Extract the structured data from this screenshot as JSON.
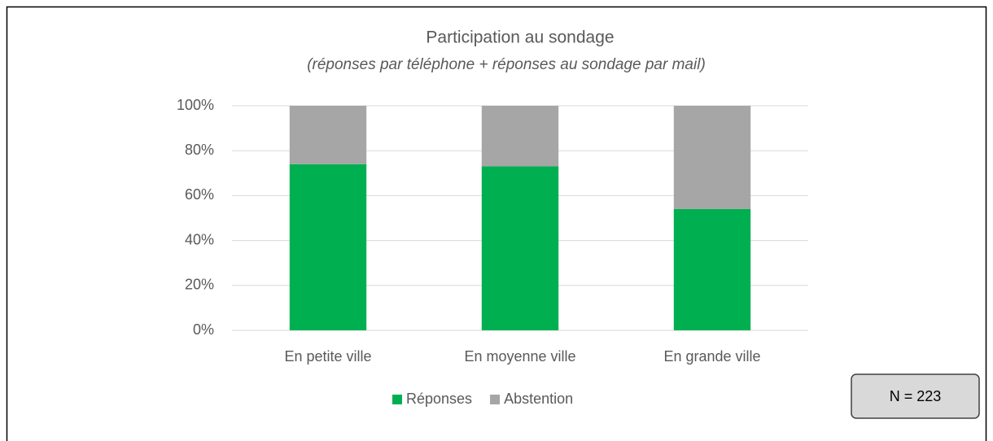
{
  "chart_data": {
    "type": "stacked_bar",
    "title": "Participation au sondage",
    "subtitle": "(réponses par téléphone + réponses au sondage par mail)",
    "categories": [
      "En petite ville",
      "En moyenne ville",
      "En grande ville"
    ],
    "series": [
      {
        "name": "Réponses",
        "color": "#00b050",
        "values": [
          74,
          73,
          54
        ]
      },
      {
        "name": "Abstention",
        "color": "#a6a6a6",
        "values": [
          26,
          27,
          46
        ]
      }
    ],
    "ylim": [
      0,
      100
    ],
    "yticks": [
      {
        "value": 0,
        "label": "0%"
      },
      {
        "value": 20,
        "label": "20%"
      },
      {
        "value": 40,
        "label": "40%"
      },
      {
        "value": 60,
        "label": "60%"
      },
      {
        "value": 80,
        "label": "80%"
      },
      {
        "value": 100,
        "label": "100%"
      }
    ],
    "grid": true,
    "legend": "bottom",
    "annotation": "N = 223"
  }
}
